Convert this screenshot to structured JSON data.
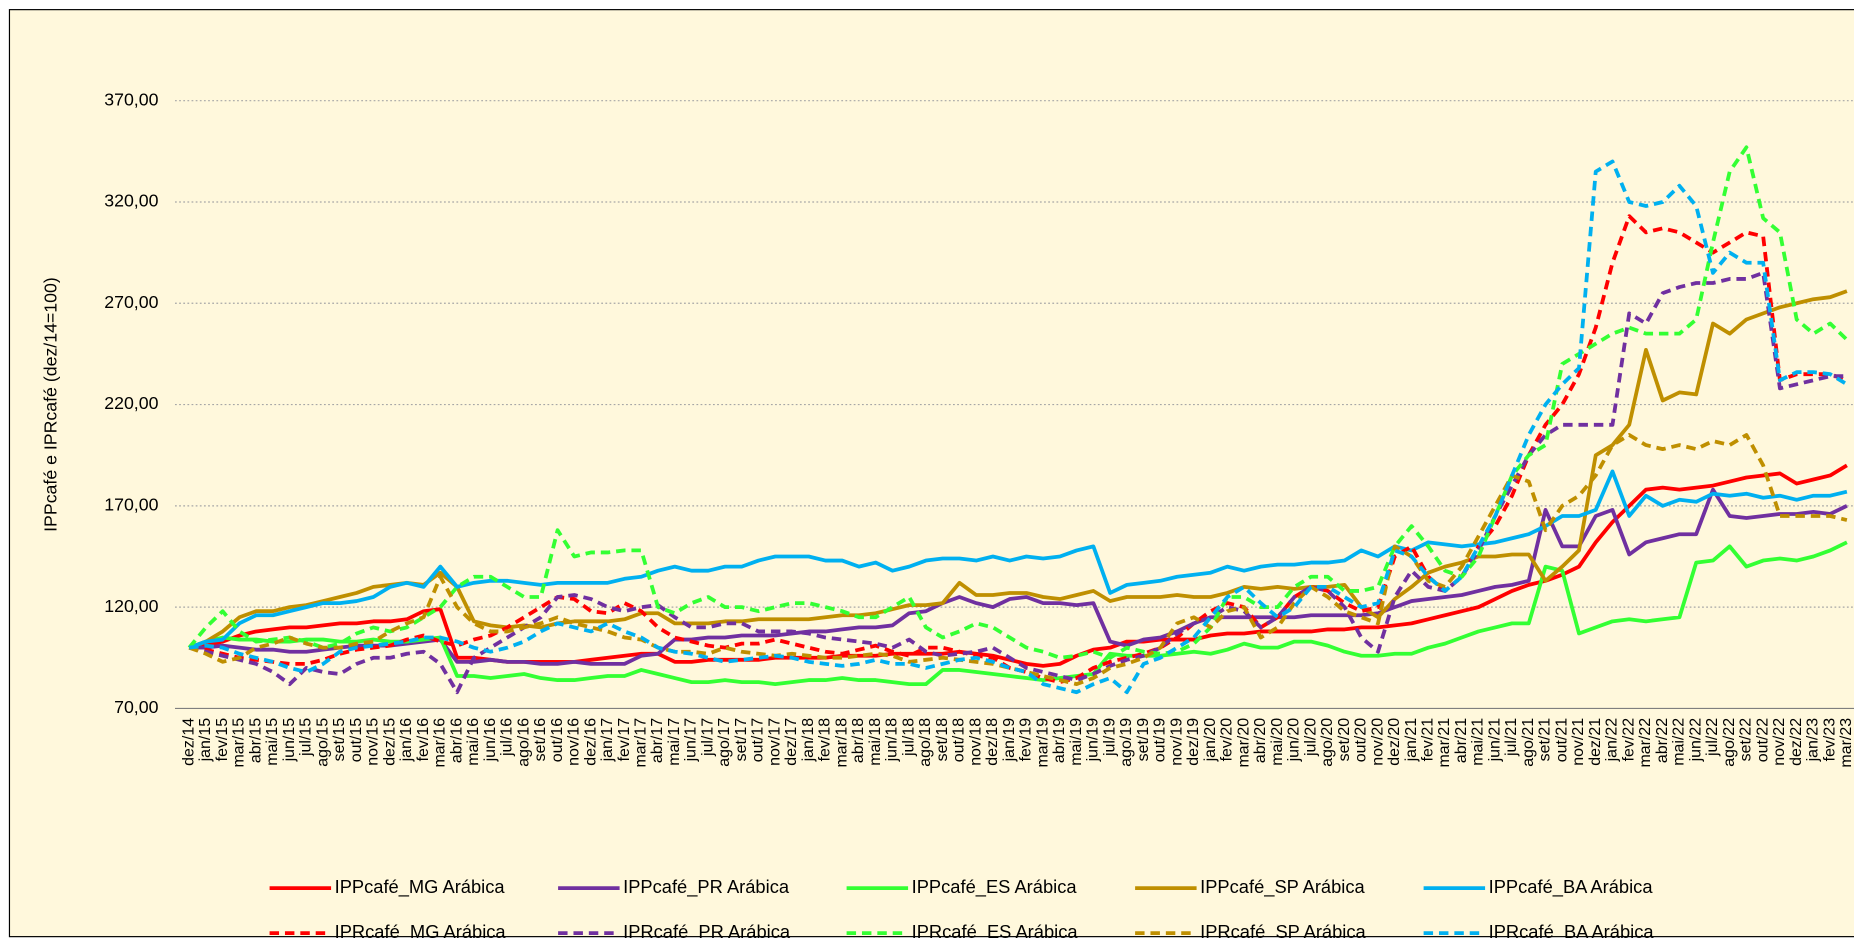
{
  "chart_data": {
    "type": "line",
    "y_label": "IPPcafé e IPRcafé (dez/14=100)",
    "categories": [
      "dez/14",
      "jan/15",
      "fev/15",
      "mar/15",
      "abr/15",
      "mai/15",
      "jun/15",
      "jul/15",
      "ago/15",
      "set/15",
      "out/15",
      "nov/15",
      "dez/15",
      "jan/16",
      "fev/16",
      "mar/16",
      "abr/16",
      "mai/16",
      "jun/16",
      "jul/16",
      "ago/16",
      "set/16",
      "out/16",
      "nov/16",
      "dez/16",
      "jan/17",
      "fev/17",
      "mar/17",
      "abr/17",
      "mai/17",
      "jun/17",
      "jul/17",
      "ago/17",
      "set/17",
      "out/17",
      "nov/17",
      "dez/17",
      "jan/18",
      "fev/18",
      "mar/18",
      "abr/18",
      "mai/18",
      "jun/18",
      "jul/18",
      "ago/18",
      "set/18",
      "out/18",
      "nov/18",
      "dez/18",
      "jan/19",
      "fev/19",
      "mar/19",
      "abr/19",
      "mai/19",
      "jun/19",
      "jul/19",
      "ago/19",
      "set/19",
      "out/19",
      "nov/19",
      "dez/19",
      "jan/20",
      "fev/20",
      "mar/20",
      "abr/20",
      "mai/20",
      "jun/20",
      "jul/20",
      "ago/20",
      "set/20",
      "out/20",
      "nov/20",
      "dez/20",
      "jan/21",
      "fev/21",
      "mar/21",
      "abr/21",
      "mai/21",
      "jun/21",
      "jul/21",
      "ago/21",
      "set/21",
      "out/21",
      "nov/21",
      "dez/21",
      "jan/22",
      "fev/22",
      "mar/22",
      "abr/22",
      "mai/22",
      "jun/22",
      "jul/22",
      "ago/22",
      "set/22",
      "out/22",
      "nov/22",
      "dez/22",
      "jan/23",
      "fev/23",
      "mar/23"
    ],
    "ylim": [
      70,
      370
    ],
    "yticks": [
      {
        "value": 70,
        "label": "70,00"
      },
      {
        "value": 120,
        "label": "120,00"
      },
      {
        "value": 170,
        "label": "170,00"
      },
      {
        "value": 220,
        "label": "220,00"
      },
      {
        "value": 270,
        "label": "270,00"
      },
      {
        "value": 320,
        "label": "320,00"
      },
      {
        "value": 370,
        "label": "370,00"
      }
    ],
    "grid": true,
    "legend": "bottom",
    "series": [
      {
        "name": "IPPcafé_MG Arábica",
        "color": "#ff0000",
        "style": "solid",
        "values": [
          100,
          101,
          103,
          106,
          108,
          109,
          110,
          110,
          111,
          112,
          112,
          113,
          113,
          114,
          118,
          119,
          95,
          95,
          94,
          93,
          93,
          93,
          93,
          93,
          94,
          95,
          96,
          97,
          97,
          93,
          93,
          94,
          94,
          94,
          94,
          95,
          95,
          95,
          95,
          96,
          96,
          96,
          97,
          97,
          97,
          97,
          98,
          97,
          96,
          94,
          92,
          91,
          92,
          96,
          99,
          100,
          103,
          103,
          104,
          104,
          104,
          106,
          107,
          107,
          108,
          108,
          108,
          108,
          109,
          109,
          110,
          110,
          111,
          112,
          114,
          116,
          118,
          120,
          124,
          128,
          131,
          133,
          136,
          140,
          152,
          162,
          170,
          178,
          179,
          178,
          179,
          180,
          182,
          184,
          185,
          186,
          181,
          183,
          185,
          190
        ]
      },
      {
        "name": "IPPcafé_PR Arábica",
        "color": "#7030a0",
        "style": "solid",
        "values": [
          100,
          100,
          101,
          100,
          99,
          99,
          98,
          98,
          99,
          100,
          101,
          101,
          101,
          102,
          103,
          104,
          93,
          93,
          94,
          93,
          93,
          92,
          92,
          93,
          92,
          92,
          92,
          96,
          97,
          104,
          104,
          105,
          105,
          106,
          106,
          106,
          107,
          108,
          108,
          109,
          110,
          110,
          111,
          117,
          118,
          122,
          125,
          122,
          120,
          124,
          125,
          122,
          122,
          121,
          122,
          103,
          101,
          104,
          105,
          108,
          112,
          115,
          115,
          115,
          115,
          115,
          115,
          116,
          116,
          116,
          116,
          117,
          120,
          123,
          124,
          125,
          126,
          128,
          130,
          131,
          133,
          168,
          150,
          150,
          165,
          168,
          146,
          152,
          154,
          156,
          156,
          178,
          165,
          164,
          165,
          166,
          166,
          167,
          166,
          170
        ]
      },
      {
        "name": "IPPcafé_ES Arábica",
        "color": "#33ff33",
        "style": "solid",
        "values": [
          100,
          103,
          105,
          104,
          104,
          103,
          103,
          104,
          104,
          103,
          103,
          104,
          103,
          103,
          104,
          105,
          86,
          86,
          85,
          86,
          87,
          85,
          84,
          84,
          85,
          86,
          86,
          89,
          87,
          85,
          83,
          83,
          84,
          83,
          83,
          82,
          83,
          84,
          84,
          85,
          84,
          84,
          83,
          82,
          82,
          89,
          89,
          88,
          87,
          86,
          85,
          84,
          85,
          86,
          87,
          97,
          96,
          96,
          96,
          97,
          98,
          97,
          99,
          102,
          100,
          100,
          103,
          103,
          101,
          98,
          96,
          96,
          97,
          97,
          100,
          102,
          105,
          108,
          110,
          112,
          112,
          140,
          138,
          107,
          110,
          113,
          114,
          113,
          114,
          115,
          142,
          143,
          150,
          140,
          143,
          144,
          143,
          145,
          148,
          152
        ]
      },
      {
        "name": "IPPcafé_SP Arábica",
        "color": "#bf8f00",
        "style": "solid",
        "values": [
          100,
          103,
          108,
          115,
          118,
          118,
          120,
          121,
          123,
          125,
          127,
          130,
          131,
          132,
          131,
          137,
          130,
          113,
          111,
          110,
          111,
          110,
          112,
          113,
          113,
          113,
          114,
          117,
          117,
          112,
          112,
          112,
          113,
          113,
          114,
          114,
          114,
          114,
          115,
          116,
          116,
          117,
          119,
          121,
          121,
          122,
          132,
          126,
          126,
          127,
          127,
          125,
          124,
          126,
          128,
          123,
          125,
          125,
          125,
          126,
          125,
          125,
          127,
          130,
          129,
          130,
          129,
          130,
          130,
          131,
          120,
          115,
          124,
          130,
          137,
          140,
          142,
          145,
          145,
          146,
          146,
          133,
          140,
          148,
          195,
          200,
          210,
          247,
          222,
          226,
          225,
          260,
          255,
          262,
          265,
          268,
          270,
          272,
          273,
          276
        ]
      },
      {
        "name": "IPPcafé_BA Arábica",
        "color": "#00b0f0",
        "style": "solid",
        "values": [
          100,
          103,
          104,
          112,
          116,
          116,
          118,
          120,
          122,
          122,
          123,
          125,
          130,
          132,
          130,
          140,
          130,
          132,
          133,
          133,
          132,
          131,
          132,
          132,
          132,
          132,
          134,
          135,
          138,
          140,
          138,
          138,
          140,
          140,
          143,
          145,
          145,
          145,
          143,
          143,
          140,
          142,
          138,
          140,
          143,
          144,
          144,
          143,
          145,
          143,
          145,
          144,
          145,
          148,
          150,
          127,
          131,
          132,
          133,
          135,
          136,
          137,
          140,
          138,
          140,
          141,
          141,
          142,
          142,
          143,
          148,
          145,
          150,
          148,
          152,
          151,
          150,
          151,
          152,
          154,
          156,
          160,
          165,
          165,
          168,
          187,
          165,
          175,
          170,
          173,
          172,
          176,
          175,
          176,
          174,
          175,
          173,
          175,
          175,
          177
        ]
      },
      {
        "name": "IPRcafé_MG Arábica",
        "color": "#ff0000",
        "style": "dashed",
        "values": [
          100,
          99,
          97,
          95,
          94,
          93,
          92,
          92,
          94,
          97,
          99,
          100,
          101,
          104,
          106,
          103,
          101,
          104,
          106,
          110,
          115,
          120,
          125,
          124,
          118,
          117,
          122,
          118,
          110,
          105,
          103,
          101,
          100,
          102,
          102,
          104,
          102,
          100,
          98,
          97,
          99,
          101,
          98,
          96,
          100,
          100,
          98,
          96,
          95,
          90,
          88,
          85,
          83,
          85,
          90,
          93,
          95,
          97,
          100,
          105,
          112,
          118,
          122,
          120,
          110,
          115,
          125,
          130,
          128,
          122,
          118,
          120,
          145,
          150,
          135,
          128,
          135,
          150,
          160,
          175,
          195,
          210,
          220,
          235,
          258,
          290,
          313,
          305,
          307,
          305,
          300,
          295,
          300,
          305,
          303,
          232,
          235,
          235,
          235,
          232
        ]
      },
      {
        "name": "IPRcafé_PR Arábica",
        "color": "#7030a0",
        "style": "dashed",
        "values": [
          100,
          98,
          96,
          94,
          92,
          88,
          82,
          90,
          88,
          87,
          92,
          95,
          95,
          97,
          98,
          92,
          78,
          95,
          100,
          105,
          110,
          115,
          125,
          126,
          124,
          120,
          118,
          120,
          121,
          115,
          110,
          110,
          112,
          112,
          108,
          108,
          108,
          107,
          105,
          104,
          103,
          102,
          100,
          104,
          98,
          96,
          97,
          98,
          100,
          95,
          90,
          88,
          86,
          84,
          87,
          91,
          94,
          96,
          100,
          107,
          112,
          115,
          120,
          118,
          110,
          115,
          125,
          130,
          128,
          120,
          105,
          98,
          125,
          138,
          130,
          128,
          135,
          148,
          165,
          180,
          195,
          205,
          210,
          210,
          210,
          210,
          265,
          260,
          275,
          278,
          280,
          280,
          282,
          282,
          285,
          228,
          230,
          232,
          234,
          234
        ]
      },
      {
        "name": "IPRcafé_ES Arábica",
        "color": "#33ff33",
        "style": "dashed",
        "values": [
          100,
          110,
          118,
          108,
          103,
          104,
          105,
          103,
          100,
          102,
          107,
          110,
          108,
          110,
          115,
          120,
          130,
          135,
          135,
          130,
          125,
          125,
          158,
          145,
          147,
          147,
          148,
          148,
          120,
          117,
          122,
          125,
          120,
          120,
          118,
          120,
          122,
          122,
          120,
          118,
          115,
          115,
          120,
          125,
          110,
          105,
          108,
          112,
          110,
          105,
          100,
          98,
          95,
          96,
          98,
          95,
          100,
          98,
          97,
          98,
          102,
          110,
          125,
          125,
          120,
          120,
          130,
          135,
          135,
          128,
          128,
          130,
          150,
          160,
          150,
          138,
          135,
          145,
          165,
          185,
          195,
          200,
          240,
          245,
          250,
          255,
          258,
          255,
          255,
          255,
          262,
          300,
          335,
          347,
          312,
          305,
          262,
          255,
          260,
          252
        ]
      },
      {
        "name": "IPRcafé_SP Arábica",
        "color": "#bf8f00",
        "style": "dashed",
        "values": [
          100,
          97,
          93,
          95,
          100,
          102,
          105,
          102,
          100,
          100,
          102,
          103,
          108,
          112,
          115,
          135,
          120,
          112,
          108,
          108,
          110,
          112,
          115,
          112,
          110,
          108,
          105,
          104,
          100,
          98,
          98,
          97,
          100,
          98,
          97,
          96,
          97,
          96,
          95,
          95,
          96,
          97,
          96,
          93,
          94,
          95,
          94,
          93,
          92,
          90,
          88,
          86,
          84,
          82,
          85,
          90,
          92,
          95,
          100,
          112,
          115,
          110,
          118,
          120,
          105,
          110,
          122,
          130,
          125,
          118,
          115,
          112,
          150,
          145,
          133,
          130,
          140,
          155,
          170,
          185,
          182,
          158,
          170,
          175,
          185,
          200,
          205,
          200,
          198,
          200,
          198,
          202,
          200,
          205,
          190,
          165,
          165,
          165,
          165,
          163
        ]
      },
      {
        "name": "IPRcafé_BA Arábica",
        "color": "#00b0f0",
        "style": "dashed",
        "values": [
          100,
          101,
          100,
          97,
          95,
          93,
          90,
          88,
          92,
          98,
          100,
          101,
          102,
          103,
          105,
          105,
          103,
          100,
          98,
          100,
          103,
          108,
          112,
          110,
          108,
          112,
          108,
          105,
          100,
          98,
          97,
          95,
          93,
          94,
          95,
          96,
          95,
          93,
          92,
          91,
          92,
          94,
          92,
          92,
          90,
          92,
          94,
          95,
          93,
          90,
          88,
          82,
          80,
          78,
          82,
          85,
          78,
          92,
          95,
          100,
          105,
          115,
          125,
          130,
          122,
          115,
          120,
          130,
          130,
          125,
          120,
          122,
          148,
          145,
          135,
          128,
          135,
          150,
          165,
          185,
          205,
          220,
          230,
          238,
          335,
          340,
          320,
          318,
          320,
          328,
          318,
          285,
          295,
          290,
          290,
          232,
          236,
          236,
          235,
          230
        ]
      }
    ]
  }
}
